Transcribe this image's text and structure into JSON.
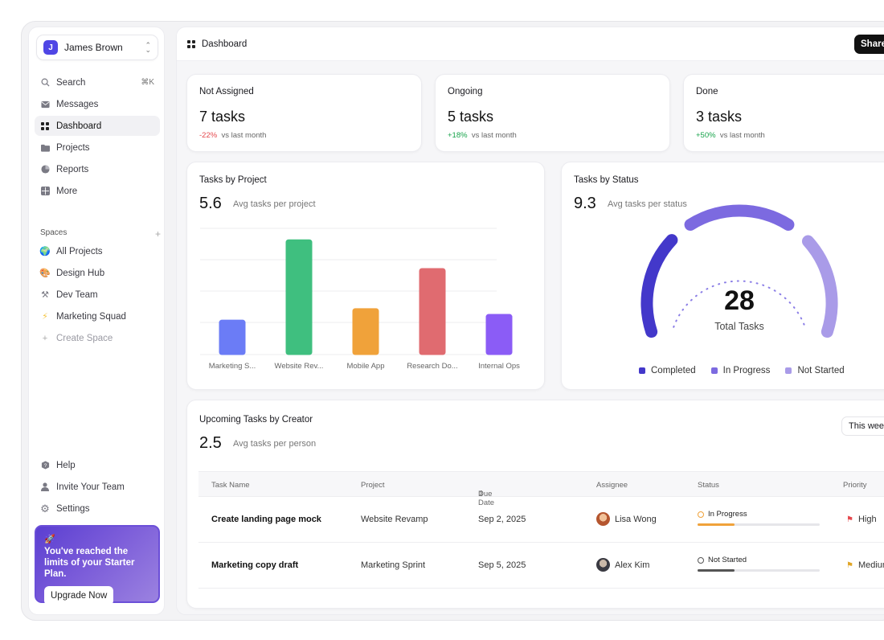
{
  "user": {
    "initial": "J",
    "name": "James Brown"
  },
  "nav": {
    "search": "Search",
    "search_shortcut": "⌘K",
    "messages": "Messages",
    "dashboard": "Dashboard",
    "projects": "Projects",
    "reports": "Reports",
    "more": "More"
  },
  "spaces": {
    "heading": "Spaces",
    "items": [
      "All Projects",
      "Design Hub",
      "Dev Team",
      "Marketing Squad"
    ],
    "create": "Create Space"
  },
  "footer_nav": {
    "help": "Help",
    "invite": "Invite Your Team",
    "settings": "Settings"
  },
  "promo": {
    "text": "You've reached the limits of your Starter Plan.",
    "button": "Upgrade Now"
  },
  "topbar": {
    "title": "Dashboard",
    "share": "Share"
  },
  "stats": [
    {
      "label": "Not Assigned",
      "value": "7 tasks",
      "delta": "-22%",
      "suffix": "vs last month"
    },
    {
      "label": "Ongoing",
      "value": "5 tasks",
      "delta": "+18%",
      "suffix": "vs last month"
    },
    {
      "label": "Done",
      "value": "3 tasks",
      "delta": "+50%",
      "suffix": "vs last month"
    }
  ],
  "project_card": {
    "title": "Tasks by Project",
    "value": "5.6",
    "sub": "Avg tasks per project"
  },
  "status_card": {
    "title": "Tasks by Status",
    "value": "9.3",
    "sub": "Avg tasks per status",
    "total": "28",
    "total_label": "Total Tasks",
    "legend": [
      "Completed",
      "In Progress",
      "Not Started"
    ]
  },
  "upcoming": {
    "title": "Upcoming Tasks by Creator",
    "value": "2.5",
    "sub": "Avg tasks per person",
    "range": "This week",
    "columns": [
      "Task Name",
      "Project",
      "Due Date",
      "Assignee",
      "Status",
      "Priority"
    ],
    "rows": [
      {
        "task": "Create landing page mock",
        "project": "Website Revamp",
        "due": "Sep 2, 2025",
        "assignee": "Lisa Wong",
        "status": "In Progress",
        "progress": 0.3,
        "priority": "High"
      },
      {
        "task": "Marketing copy draft",
        "project": "Marketing Sprint",
        "due": "Sep 5, 2025",
        "assignee": "Alex Kim",
        "status": "Not Started",
        "progress": 0.3,
        "priority": "Medium"
      }
    ]
  },
  "chart_data": [
    {
      "type": "bar",
      "title": "Tasks by Project",
      "categories": [
        "Marketing S...",
        "Website Rev...",
        "Mobile App",
        "Research Do...",
        "Internal Ops"
      ],
      "values": [
        3,
        10,
        4,
        7.5,
        3.5
      ],
      "colors": [
        "#6b7cf6",
        "#3fbf7f",
        "#f0a23a",
        "#e06b70",
        "#8b5cf6"
      ],
      "ylim": [
        0,
        11
      ],
      "grid": true
    },
    {
      "type": "gauge",
      "title": "Tasks by Status",
      "segments": [
        {
          "name": "Completed",
          "color": "#4338ca"
        },
        {
          "name": "In Progress",
          "color": "#7c6ae0"
        },
        {
          "name": "Not Started",
          "color": "#a99be8"
        }
      ]
    }
  ],
  "colors": {
    "accent": "#4f46e5",
    "negative": "#e5484d",
    "positive": "#16a34a",
    "progress_in": "#f0a23a",
    "progress_not": "#555555"
  }
}
